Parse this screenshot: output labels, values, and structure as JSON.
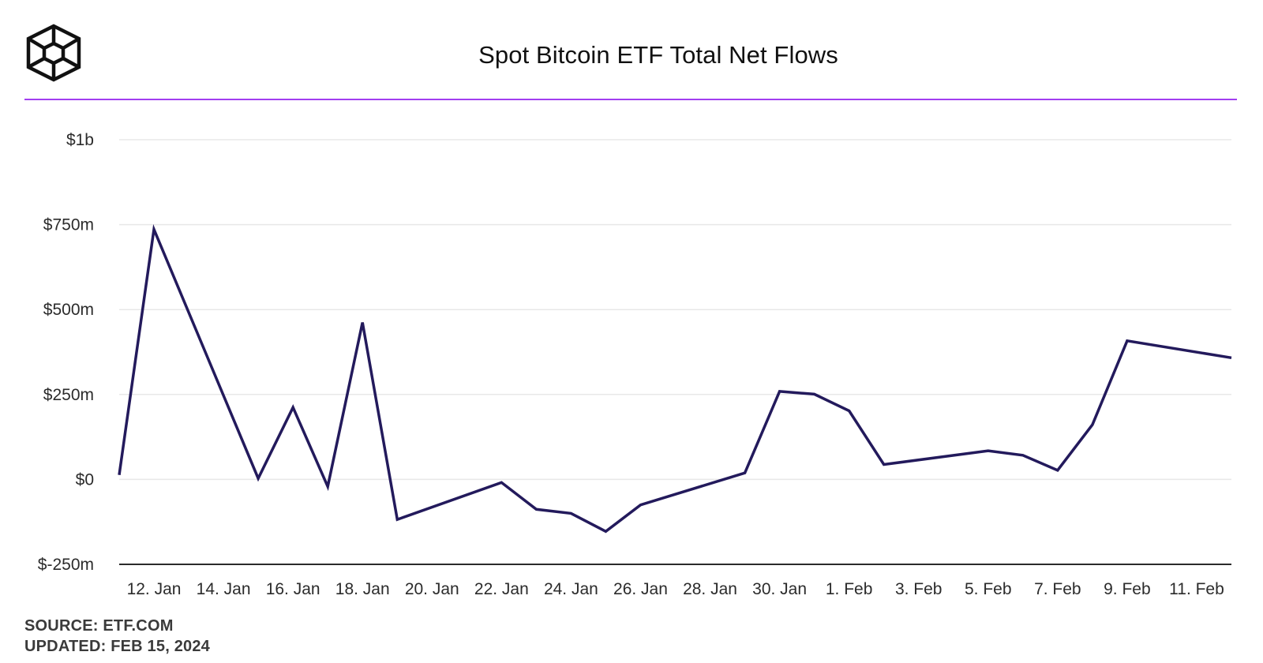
{
  "header": {
    "title": "Spot Bitcoin ETF Total Net Flows"
  },
  "footer": {
    "source": "SOURCE: ETF.COM",
    "updated": "UPDATED: FEB 15, 2024"
  },
  "colors": {
    "line": "#231a5c",
    "accent_rule": "#a23ef0",
    "grid": "#e8e8e8",
    "axis": "#2b2b2b"
  },
  "chart_data": {
    "type": "line",
    "title": "Spot Bitcoin ETF Total Net Flows",
    "xlabel": "",
    "ylabel": "",
    "ylim": [
      -250,
      1000
    ],
    "y_unit": "millions USD",
    "yticks": [
      -250,
      0,
      250,
      500,
      750,
      1000
    ],
    "ytick_labels": [
      "$-250m",
      "$0",
      "$250m",
      "$500m",
      "$750m",
      "$1b"
    ],
    "xticks": [
      "2024-01-12",
      "2024-01-14",
      "2024-01-16",
      "2024-01-18",
      "2024-01-20",
      "2024-01-22",
      "2024-01-24",
      "2024-01-26",
      "2024-01-28",
      "2024-01-30",
      "2024-02-01",
      "2024-02-03",
      "2024-02-05",
      "2024-02-07",
      "2024-02-09",
      "2024-02-11"
    ],
    "xtick_labels": [
      "12. Jan",
      "14. Jan",
      "16. Jan",
      "18. Jan",
      "20. Jan",
      "22. Jan",
      "24. Jan",
      "26. Jan",
      "28. Jan",
      "30. Jan",
      "1. Feb",
      "3. Feb",
      "5. Feb",
      "7. Feb",
      "9. Feb",
      "11. Feb"
    ],
    "grid": true,
    "legend": "none",
    "series": [
      {
        "points": [
          {
            "x": "2024-01-11",
            "y": 13
          },
          {
            "x": "2024-01-12",
            "y": 736
          },
          {
            "x": "2024-01-15",
            "y": 3
          },
          {
            "x": "2024-01-16",
            "y": 212
          },
          {
            "x": "2024-01-17",
            "y": -21
          },
          {
            "x": "2024-01-18",
            "y": 462
          },
          {
            "x": "2024-01-19",
            "y": -118
          },
          {
            "x": "2024-01-22",
            "y": -9
          },
          {
            "x": "2024-01-23",
            "y": -88
          },
          {
            "x": "2024-01-24",
            "y": -100
          },
          {
            "x": "2024-01-25",
            "y": -153
          },
          {
            "x": "2024-01-26",
            "y": -75
          },
          {
            "x": "2024-01-29",
            "y": 19
          },
          {
            "x": "2024-01-30",
            "y": 259
          },
          {
            "x": "2024-01-31",
            "y": 251
          },
          {
            "x": "2024-02-01",
            "y": 202
          },
          {
            "x": "2024-02-02",
            "y": 44
          },
          {
            "x": "2024-02-05",
            "y": 84
          },
          {
            "x": "2024-02-06",
            "y": 71
          },
          {
            "x": "2024-02-07",
            "y": 27
          },
          {
            "x": "2024-02-08",
            "y": 161
          },
          {
            "x": "2024-02-09",
            "y": 408
          },
          {
            "x": "2024-02-12",
            "y": 358
          }
        ]
      }
    ]
  }
}
